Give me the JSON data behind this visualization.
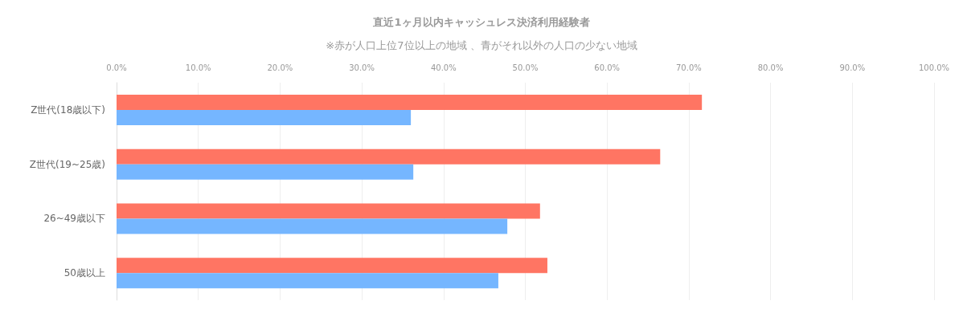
{
  "chart_data": {
    "type": "bar",
    "orientation": "horizontal",
    "title": "直近1ヶ月以内キャッシュレス決済利用経験者",
    "subtitle": "※赤が人口上位7位以上の地域 、青がそれ以外の人口の少ない地域",
    "categories": [
      "Z世代(18歳以下)",
      "Z世代(19~25歳)",
      "26~49歳以下",
      "50歳以上"
    ],
    "series": [
      {
        "color": "#ff7563",
        "values": [
          71.6,
          66.5,
          51.8,
          52.7
        ]
      },
      {
        "color": "#75b6ff",
        "values": [
          36.0,
          36.3,
          47.8,
          46.7
        ]
      }
    ],
    "xlim": [
      0,
      100
    ],
    "xticks": [
      {
        "value": 0,
        "label": "0.0%"
      },
      {
        "value": 10,
        "label": "10.0%"
      },
      {
        "value": 20,
        "label": "20.0%"
      },
      {
        "value": 30,
        "label": "30.0%"
      },
      {
        "value": 40,
        "label": "40.0%"
      },
      {
        "value": 50,
        "label": "50.0%"
      },
      {
        "value": 60,
        "label": "60.0%"
      },
      {
        "value": 70,
        "label": "70.0%"
      },
      {
        "value": 80,
        "label": "80.0%"
      },
      {
        "value": 90,
        "label": "90.0%"
      },
      {
        "value": 100,
        "label": "100.0%"
      }
    ],
    "grid": "x"
  }
}
